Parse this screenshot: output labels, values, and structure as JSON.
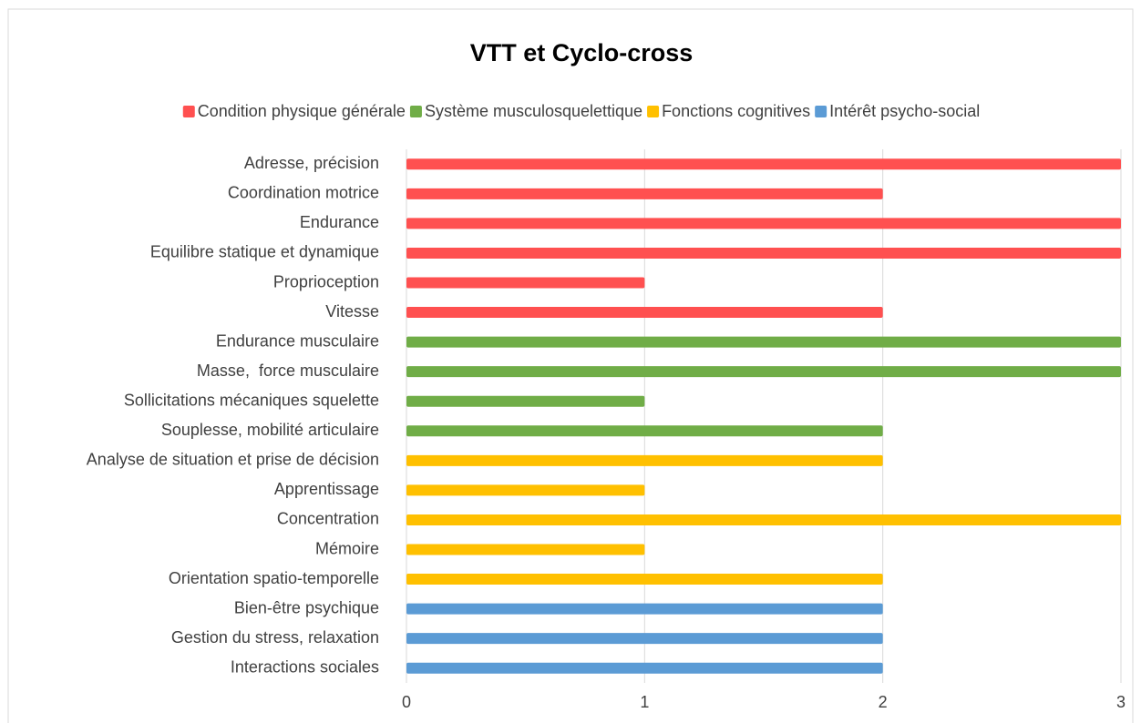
{
  "chart_data": {
    "type": "bar",
    "orientation": "horizontal",
    "title": "VTT et Cyclo-cross",
    "categories": [
      "Adresse, précision",
      "Coordination motrice",
      "Endurance",
      "Equilibre statique et dynamique",
      "Proprioception",
      "Vitesse",
      "Endurance musculaire",
      "Masse,  force musculaire",
      "Sollicitations mécaniques squelette",
      "Souplesse, mobilité articulaire",
      "Analyse de situation et prise de décision",
      "Apprentissage",
      "Concentration",
      "Mémoire",
      "Orientation spatio-temporelle",
      "Bien-être psychique",
      "Gestion du stress, relaxation",
      "Interactions sociales"
    ],
    "series": [
      {
        "name": "Condition physique générale",
        "color": "#ff5050",
        "values": [
          3,
          2,
          3,
          3,
          1,
          2,
          null,
          null,
          null,
          null,
          null,
          null,
          null,
          null,
          null,
          null,
          null,
          null
        ]
      },
      {
        "name": "Système musculosquelettique",
        "color": "#70ad47",
        "values": [
          null,
          null,
          null,
          null,
          null,
          null,
          3,
          3,
          1,
          2,
          null,
          null,
          null,
          null,
          null,
          null,
          null,
          null
        ]
      },
      {
        "name": "Fonctions cognitives",
        "color": "#ffc000",
        "values": [
          null,
          null,
          null,
          null,
          null,
          null,
          null,
          null,
          null,
          null,
          2,
          1,
          3,
          1,
          2,
          null,
          null,
          null
        ]
      },
      {
        "name": "Intérêt psycho-social",
        "color": "#5b9bd5",
        "values": [
          null,
          null,
          null,
          null,
          null,
          null,
          null,
          null,
          null,
          null,
          null,
          null,
          null,
          null,
          null,
          2,
          2,
          2
        ]
      }
    ],
    "xlim": [
      0,
      3
    ],
    "xticks": [
      0,
      1,
      2,
      3
    ],
    "grid": true,
    "legend": "top"
  }
}
